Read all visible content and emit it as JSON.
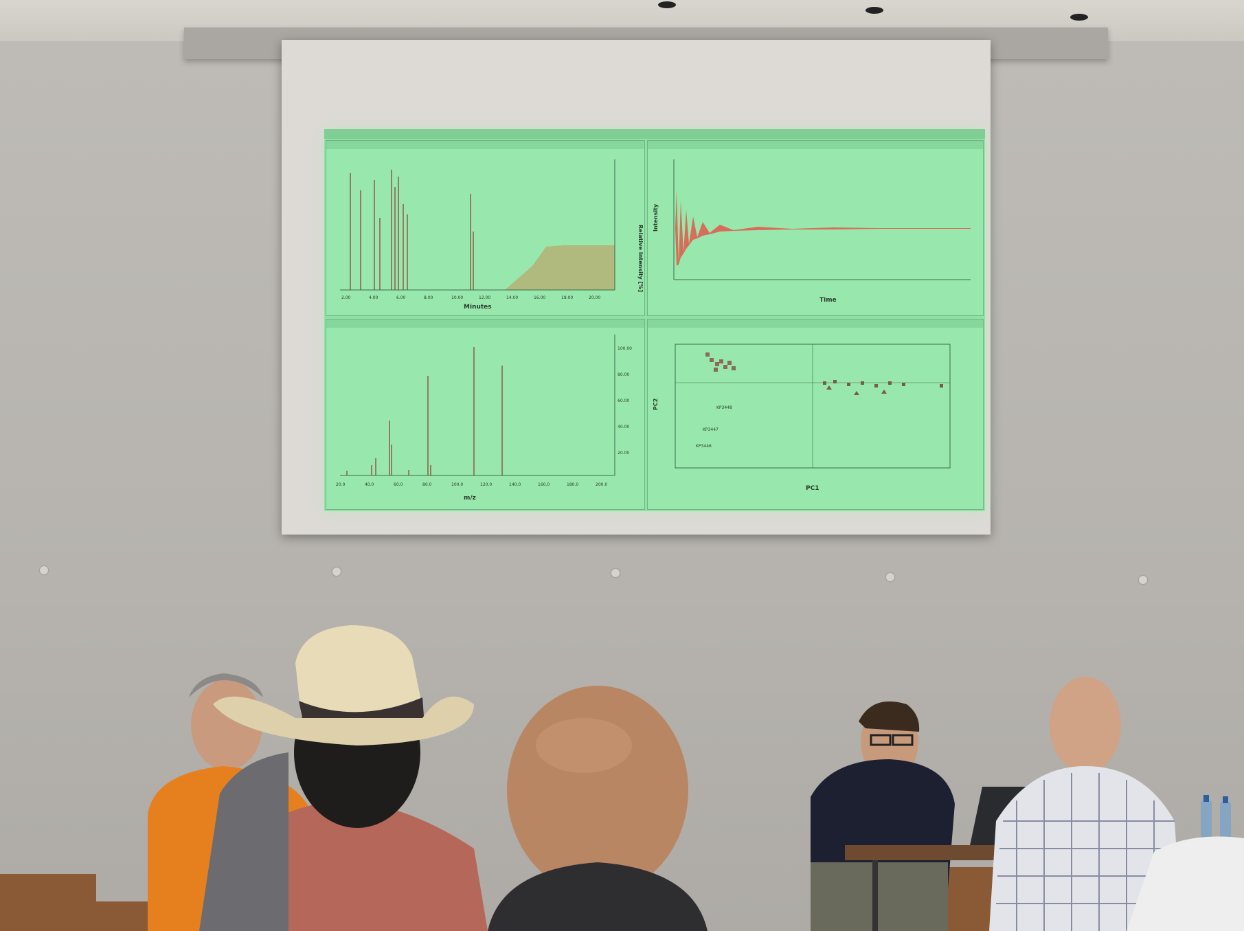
{
  "scene": {
    "description_free": true,
    "colors": {
      "wall": "#b9b6b1",
      "projection_bg": "#8ee2a4",
      "peak_line": "#8b3a2a",
      "fid_signal": "#e0584a",
      "area_fill": "#b7ad72"
    }
  },
  "slide": {
    "panels": [
      {
        "id": "top-left",
        "xlabel": "Minutes",
        "ylabel": "Relative Intensity [%]"
      },
      {
        "id": "top-right",
        "xlabel": "Time",
        "ylabel": "Intensity"
      },
      {
        "id": "bottom-left",
        "xlabel": "m/z"
      },
      {
        "id": "bottom-right",
        "xlabel": "PC1",
        "ylabel": "PC2"
      }
    ],
    "top_left_ticks_x": [
      "2.00",
      "4.00",
      "6.00",
      "8.00",
      "10.00",
      "12.00",
      "14.00",
      "16.00",
      "18.00",
      "20.00"
    ],
    "bottom_left_ticks_x": [
      "20.0",
      "40.0",
      "60.0",
      "80.0",
      "100.0",
      "120.0",
      "140.0",
      "160.0",
      "180.0",
      "200.0"
    ],
    "bottom_left_ticks_y": [
      "100.00",
      "80.00",
      "60.00",
      "40.00",
      "20.00"
    ],
    "pca_labels": [
      "KP3448",
      "KP3447",
      "KP3446"
    ]
  }
}
